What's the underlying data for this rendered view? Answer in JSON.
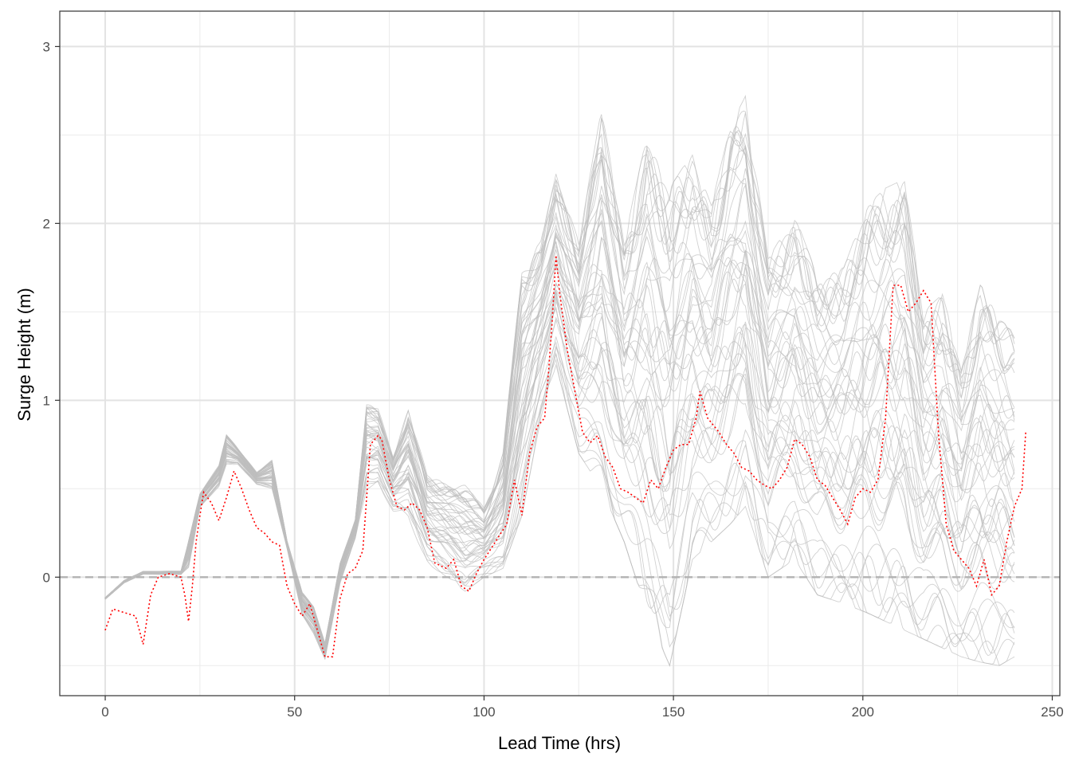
{
  "chart_data": {
    "type": "line",
    "title": "",
    "xlabel": "Lead Time (hrs)",
    "ylabel": "Surge Height (m)",
    "xlim": [
      -12,
      252
    ],
    "ylim": [
      -0.67,
      3.2
    ],
    "x_ticks": [
      0,
      50,
      100,
      150,
      200,
      250
    ],
    "x_tick_labels": [
      "0",
      "50",
      "100",
      "150",
      "200",
      "250"
    ],
    "y_ticks": [
      0,
      1,
      2,
      3
    ],
    "y_tick_labels": [
      "0",
      "1",
      "2",
      "3"
    ],
    "grid": true,
    "reference_line": {
      "y": 0,
      "style": "dashed",
      "color": "#b3b3b3"
    },
    "ensemble": {
      "color": "#bdbdbd",
      "members": 50,
      "x_end": 240,
      "envelope": {
        "x": [
          0,
          5,
          10,
          20,
          22,
          25,
          30,
          32,
          35,
          40,
          44,
          48,
          52,
          55,
          58,
          62,
          66,
          69,
          72,
          76,
          80,
          85,
          90,
          95,
          100,
          105,
          110,
          115,
          119,
          125,
          131,
          137,
          143,
          149,
          155,
          160,
          165,
          169,
          175,
          182,
          188,
          195,
          201,
          206,
          211,
          216,
          221,
          226,
          231,
          236,
          240
        ],
        "low": [
          -0.14,
          -0.05,
          0.0,
          0.0,
          -0.05,
          0.35,
          0.45,
          0.55,
          0.6,
          0.5,
          0.45,
          0.15,
          -0.25,
          -0.35,
          -0.48,
          -0.05,
          0.2,
          0.45,
          0.5,
          0.35,
          0.3,
          0.08,
          0.0,
          -0.08,
          0.0,
          0.05,
          0.35,
          0.9,
          1.2,
          0.7,
          0.5,
          0.2,
          -0.2,
          -0.5,
          0.1,
          0.2,
          0.3,
          0.4,
          0.0,
          0.1,
          -0.1,
          -0.15,
          -0.2,
          -0.25,
          -0.3,
          -0.35,
          -0.4,
          -0.45,
          -0.48,
          -0.5,
          -0.45
        ],
        "high": [
          -0.1,
          0.0,
          0.05,
          0.05,
          0.32,
          0.52,
          0.7,
          0.9,
          0.77,
          0.62,
          0.72,
          0.22,
          -0.05,
          -0.12,
          -0.35,
          0.1,
          0.35,
          1.05,
          1.0,
          0.72,
          1.0,
          0.6,
          0.55,
          0.52,
          0.4,
          0.7,
          1.75,
          1.9,
          2.28,
          1.9,
          2.65,
          1.9,
          2.5,
          2.2,
          2.4,
          2.1,
          2.55,
          2.72,
          1.8,
          2.05,
          1.7,
          1.75,
          2.1,
          2.2,
          2.25,
          1.5,
          1.6,
          1.2,
          1.65,
          1.55,
          1.35
        ]
      }
    },
    "series": [
      {
        "color": "#ff0000",
        "style": "dotted",
        "x": [
          0,
          2,
          5,
          8,
          10,
          12,
          14,
          17,
          20,
          21,
          22,
          23,
          24,
          25,
          26,
          28,
          30,
          32,
          34,
          36,
          38,
          40,
          42,
          44,
          46,
          48,
          50,
          52,
          54,
          56,
          58,
          60,
          62,
          64,
          66,
          68,
          69,
          70,
          72,
          73,
          75,
          77,
          79,
          81,
          83,
          85,
          87,
          90,
          92,
          94,
          96,
          98,
          100,
          103,
          106,
          108,
          110,
          112,
          114,
          116,
          117,
          118,
          119,
          120,
          122,
          124,
          126,
          128,
          130,
          132,
          134,
          136,
          138,
          140,
          142,
          144,
          146,
          148,
          150,
          152,
          154,
          156,
          157,
          159,
          162,
          164,
          166,
          168,
          170,
          172,
          174,
          176,
          178,
          180,
          182,
          184,
          186,
          188,
          190,
          192,
          194,
          196,
          198,
          200,
          202,
          204,
          206,
          208,
          210,
          212,
          214,
          216,
          218,
          220,
          222,
          224,
          226,
          228,
          230,
          232,
          234,
          236,
          238,
          240,
          242,
          243
        ],
        "y": [
          -0.3,
          -0.18,
          -0.2,
          -0.22,
          -0.38,
          -0.1,
          0.0,
          0.02,
          0.0,
          -0.1,
          -0.25,
          -0.05,
          0.2,
          0.35,
          0.48,
          0.42,
          0.32,
          0.45,
          0.6,
          0.5,
          0.38,
          0.28,
          0.25,
          0.2,
          0.18,
          -0.05,
          -0.15,
          -0.22,
          -0.15,
          -0.3,
          -0.45,
          -0.45,
          -0.12,
          0.02,
          0.05,
          0.15,
          0.45,
          0.75,
          0.8,
          0.78,
          0.55,
          0.4,
          0.38,
          0.42,
          0.38,
          0.28,
          0.08,
          0.05,
          0.1,
          -0.05,
          -0.08,
          0.02,
          0.1,
          0.2,
          0.3,
          0.55,
          0.35,
          0.7,
          0.85,
          0.9,
          1.15,
          1.45,
          1.82,
          1.6,
          1.28,
          1.05,
          0.82,
          0.76,
          0.8,
          0.68,
          0.62,
          0.5,
          0.48,
          0.45,
          0.42,
          0.55,
          0.5,
          0.62,
          0.72,
          0.75,
          0.75,
          0.9,
          1.05,
          0.9,
          0.82,
          0.75,
          0.7,
          0.62,
          0.6,
          0.55,
          0.52,
          0.5,
          0.55,
          0.62,
          0.78,
          0.75,
          0.68,
          0.55,
          0.52,
          0.45,
          0.38,
          0.3,
          0.45,
          0.5,
          0.48,
          0.55,
          0.9,
          1.65,
          1.65,
          1.5,
          1.55,
          1.62,
          1.55,
          0.8,
          0.3,
          0.15,
          0.1,
          0.05,
          -0.05,
          0.1,
          -0.1,
          -0.05,
          0.2,
          0.4,
          0.5,
          0.82
        ]
      }
    ]
  }
}
